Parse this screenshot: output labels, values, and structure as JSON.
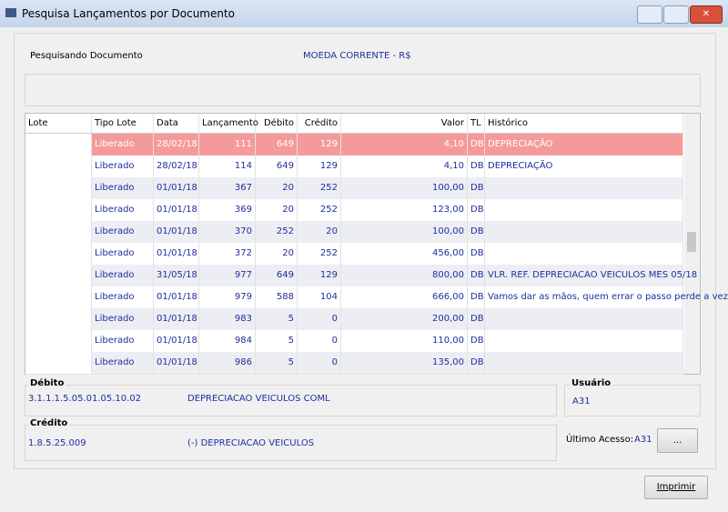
{
  "window": {
    "title": "Pesquisa Lançamentos por Documento"
  },
  "header": {
    "label": "Pesquisando Documento",
    "currency": "MOEDA CORRENTE - R$"
  },
  "table": {
    "columns": [
      "Lote",
      "Tipo Lote",
      "Data",
      "Lançamento",
      "Débito",
      "Crédito",
      "Valor",
      "TL",
      "Histórico"
    ],
    "rows": [
      {
        "tipo": "Liberado",
        "data": "28/02/18",
        "lancamento": "111",
        "debito": "649",
        "credito": "129",
        "valor": "4,10",
        "tl": "DB",
        "historico": "DEPRECIAÇÃO"
      },
      {
        "tipo": "Liberado",
        "data": "28/02/18",
        "lancamento": "114",
        "debito": "649",
        "credito": "129",
        "valor": "4,10",
        "tl": "DB",
        "historico": "DEPRECIAÇÃO"
      },
      {
        "tipo": "Liberado",
        "data": "01/01/18",
        "lancamento": "367",
        "debito": "20",
        "credito": "252",
        "valor": "100,00",
        "tl": "DB"
      },
      {
        "tipo": "Liberado",
        "data": "01/01/18",
        "lancamento": "369",
        "debito": "20",
        "credito": "252",
        "valor": "123,00",
        "tl": "DB"
      },
      {
        "tipo": "Liberado",
        "data": "01/01/18",
        "lancamento": "370",
        "debito": "252",
        "credito": "20",
        "valor": "100,00",
        "tl": "DB"
      },
      {
        "tipo": "Liberado",
        "data": "01/01/18",
        "lancamento": "372",
        "debito": "20",
        "credito": "252",
        "valor": "456,00",
        "tl": "DB"
      },
      {
        "tipo": "Liberado",
        "data": "31/05/18",
        "lancamento": "977",
        "debito": "649",
        "credito": "129",
        "valor": "800,00",
        "tl": "DB",
        "historico": "VLR. REF. DEPRECIACAO VEICULOS MES 05/18"
      },
      {
        "tipo": "Liberado",
        "data": "01/01/18",
        "lancamento": "979",
        "debito": "588",
        "credito": "104",
        "valor": "666,00",
        "tl": "DB",
        "historico": "Vamos dar as mãos, quem errar o passo perde a vez"
      },
      {
        "tipo": "Liberado",
        "data": "01/01/18",
        "lancamento": "983",
        "debito": "5",
        "credito": "0",
        "valor": "200,00",
        "tl": "DB"
      },
      {
        "tipo": "Liberado",
        "data": "01/01/18",
        "lancamento": "984",
        "debito": "5",
        "credito": "0",
        "valor": "110,00",
        "tl": "DB"
      },
      {
        "tipo": "Liberado",
        "data": "01/01/18",
        "lancamento": "986",
        "debito": "5",
        "credito": "0",
        "valor": "135,00",
        "tl": "DB"
      }
    ]
  },
  "debito": {
    "title": "Débito",
    "account": "3.1.1.1.5.05.01.05.10.02",
    "description": "DEPRECIACAO VEICULOS COML"
  },
  "credito": {
    "title": "Crédito",
    "account": "1.8.5.25.009",
    "description": "(-) DEPRECIACAO VEICULOS"
  },
  "usuario": {
    "title": "Usuário",
    "value": "A31"
  },
  "ultimo_acesso": {
    "label": "Último Acesso:",
    "value": "A31",
    "button": "..."
  },
  "buttons": {
    "print": "Imprimir"
  }
}
